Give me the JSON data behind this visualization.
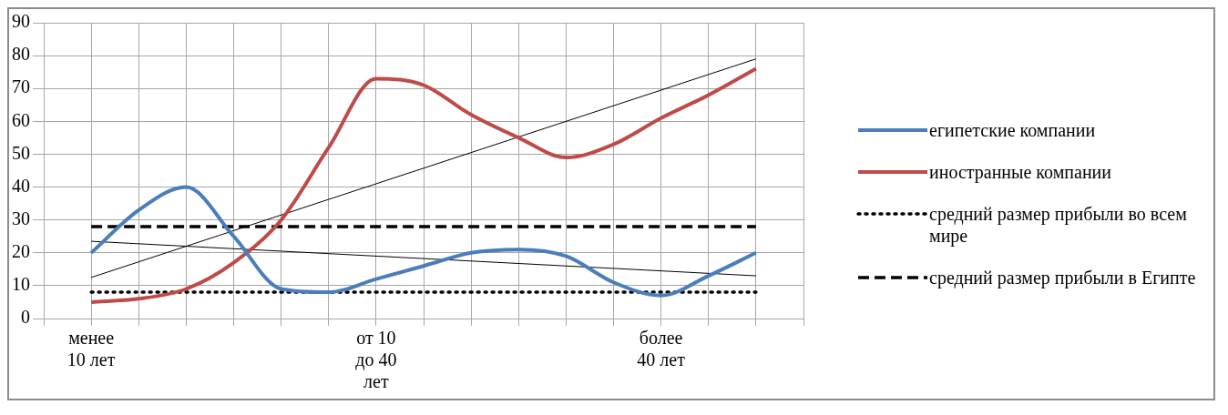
{
  "chart_data": {
    "type": "line",
    "categories": [
      null,
      "менее\n10 лет",
      null,
      null,
      null,
      null,
      null,
      "от 10\nдо 40\nлет",
      null,
      null,
      null,
      null,
      null,
      "более\n40 лет",
      null,
      null,
      null
    ],
    "series": [
      {
        "name": "египетские компании",
        "color": "#4a7ebb",
        "values": [
          null,
          20,
          33,
          40,
          25,
          9,
          8,
          12,
          16,
          20,
          21,
          19,
          11,
          7,
          13,
          20,
          null
        ]
      },
      {
        "name": "иностранные компании",
        "color": "#be4b48",
        "values": [
          null,
          5,
          6,
          9,
          17,
          30,
          52,
          73,
          71,
          62,
          55,
          49,
          53,
          61,
          68,
          76,
          null
        ]
      },
      {
        "name": "средний размер прибыли во всем мире",
        "color": "#000000",
        "line_style": "dotted",
        "values": [
          null,
          8,
          8,
          8,
          8,
          8,
          8,
          8,
          8,
          8,
          8,
          8,
          8,
          8,
          8,
          8,
          null
        ]
      },
      {
        "name": "средний размер прибыли в Египте",
        "color": "#000000",
        "line_style": "dashed",
        "values": [
          null,
          28,
          28,
          28,
          28,
          28,
          28,
          28,
          28,
          28,
          28,
          28,
          28,
          28,
          28,
          28,
          null
        ]
      },
      {
        "type": "line",
        "color": "#000000",
        "values": [
          null,
          12.5,
          null,
          null,
          null,
          null,
          null,
          null,
          null,
          null,
          null,
          null,
          null,
          null,
          null,
          79,
          null
        ]
      },
      {
        "type": "line",
        "color": "#000000",
        "values": [
          null,
          23.5,
          null,
          null,
          null,
          null,
          null,
          null,
          null,
          null,
          null,
          null,
          null,
          null,
          null,
          13,
          null
        ]
      }
    ],
    "ylim": [
      0,
      90
    ],
    "yticks": [
      0,
      10,
      20,
      30,
      40,
      50,
      60,
      70,
      80,
      90
    ],
    "grid": true,
    "legend": "right",
    "marker": "none"
  }
}
